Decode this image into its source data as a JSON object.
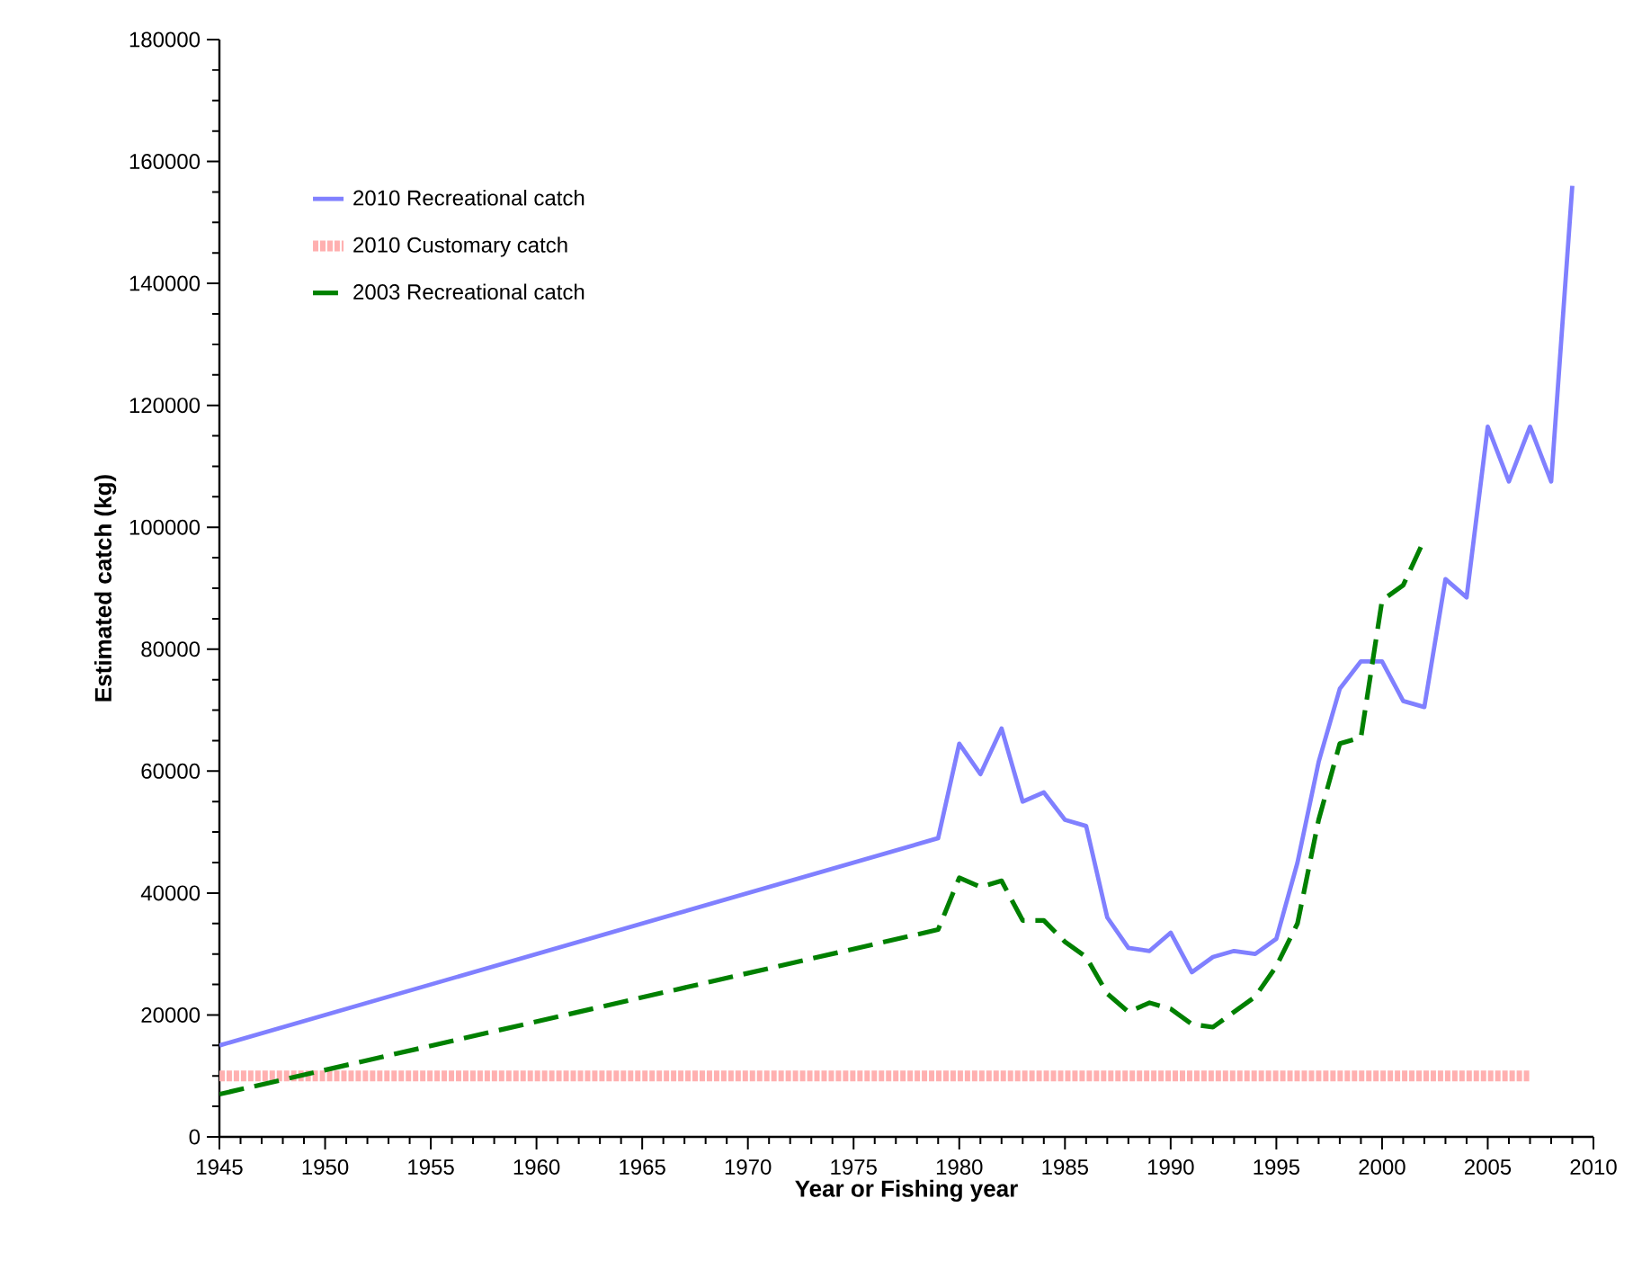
{
  "chart_data": {
    "type": "line",
    "xlabel": "Year or Fishing year",
    "ylabel": "Estimated catch (kg)",
    "xlim": [
      1945,
      2010
    ],
    "ylim": [
      0,
      180000
    ],
    "xticks": [
      1945,
      1950,
      1955,
      1960,
      1965,
      1970,
      1975,
      1980,
      1985,
      1990,
      1995,
      2000,
      2005,
      2010
    ],
    "yticks": [
      0,
      20000,
      40000,
      60000,
      80000,
      100000,
      120000,
      140000,
      160000,
      180000
    ],
    "grid": false,
    "legend": "top left",
    "marker": "none",
    "series": [
      {
        "name": "2010 Recreational catch",
        "color": "#8080ff",
        "line_style": "solid",
        "x": [
          1945,
          1979,
          1980,
          1981,
          1982,
          1983,
          1984,
          1985,
          1986,
          1987,
          1988,
          1989,
          1990,
          1991,
          1992,
          1993,
          1994,
          1995,
          1996,
          1997,
          1998,
          1999,
          2000,
          2001,
          2002,
          2003,
          2004,
          2005,
          2006,
          2007,
          2008,
          2009
        ],
        "values": [
          15000,
          49000,
          64500,
          59500,
          67000,
          55000,
          56500,
          52000,
          51000,
          36000,
          31000,
          30500,
          33500,
          27000,
          29500,
          30500,
          30000,
          32500,
          45000,
          61500,
          73500,
          78000,
          78000,
          71500,
          70500,
          91500,
          88500,
          116500,
          107500,
          116500,
          107500,
          156000
        ]
      },
      {
        "name": "2010 Customary catch",
        "color": "#ffb0b0",
        "line_style": "dotted",
        "x": [
          1945,
          2007
        ],
        "values": [
          10000,
          10000
        ]
      },
      {
        "name": "2003 Recreational catch",
        "color": "#008000",
        "line_style": "dashed",
        "x": [
          1945,
          1979,
          1980,
          1981,
          1982,
          1983,
          1984,
          1985,
          1986,
          1987,
          1988,
          1989,
          1990,
          1991,
          1992,
          1993,
          1994,
          1995,
          1996,
          1997,
          1998,
          1999,
          2000,
          2001,
          2002
        ],
        "values": [
          7000,
          34000,
          42500,
          41000,
          42000,
          35500,
          35500,
          32000,
          29500,
          23500,
          20500,
          22000,
          21000,
          18500,
          18000,
          20500,
          23000,
          28000,
          35000,
          52000,
          64500,
          65500,
          88000,
          90500,
          98000
        ]
      }
    ]
  }
}
